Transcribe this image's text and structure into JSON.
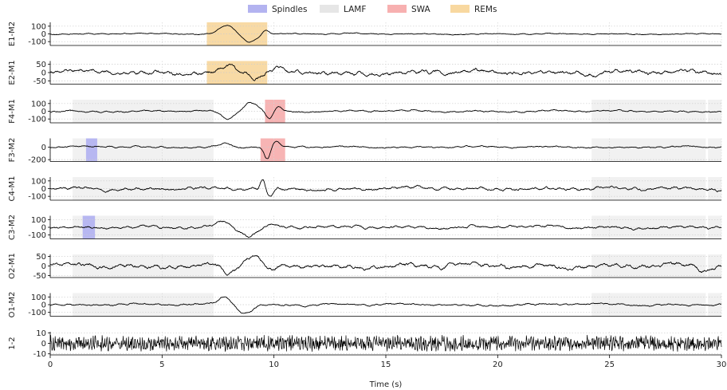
{
  "chart_data": {
    "type": "line",
    "subtype": "multichannel-eeg-traces",
    "xlabel": "Time (s)",
    "xlim": [
      0,
      30
    ],
    "xticks": [
      0,
      5,
      10,
      15,
      20,
      25,
      30
    ],
    "grid": "dotted",
    "legend": {
      "placement": "top-center",
      "entries": [
        {
          "name": "Spindles",
          "color": "#b3b3f0"
        },
        {
          "name": "LAMF",
          "color": "#eeeeee"
        },
        {
          "name": "SWA",
          "color": "#f7b0b0"
        },
        {
          "name": "REMs",
          "color": "#f8d8a0"
        }
      ]
    },
    "channels": [
      {
        "label": "E1-M2",
        "ylim": [
          -150,
          150
        ],
        "yticks": [
          100,
          0,
          -100
        ],
        "events": [
          {
            "type": "REMs",
            "start": 7.0,
            "end": 9.7
          }
        ],
        "waveforms": [
          {
            "type": "bump",
            "center": 7.9,
            "width": 0.45,
            "amp": 110
          },
          {
            "type": "bump",
            "center": 8.9,
            "width": 0.45,
            "amp": -95
          },
          {
            "type": "bump",
            "center": 9.6,
            "width": 0.2,
            "amp": 60
          }
        ],
        "noise": 8
      },
      {
        "label": "E2-M1",
        "ylim": [
          -70,
          70
        ],
        "yticks": [
          50,
          0,
          -50
        ],
        "events": [
          {
            "type": "REMs",
            "start": 7.0,
            "end": 9.7
          }
        ],
        "waveforms": [
          {
            "type": "bump",
            "center": 8.0,
            "width": 0.35,
            "amp": 35
          },
          {
            "type": "bump",
            "center": 9.2,
            "width": 0.3,
            "amp": -40
          },
          {
            "type": "bump",
            "center": 10.2,
            "width": 0.25,
            "amp": 25
          }
        ],
        "noise": 14
      },
      {
        "label": "F4-M1",
        "ylim": [
          -150,
          150
        ],
        "yticks": [
          100,
          0,
          -100
        ],
        "events": [
          {
            "type": "LAMF",
            "start": 1.0,
            "end": 7.3
          },
          {
            "type": "LAMF",
            "start": 24.2,
            "end": 29.3
          },
          {
            "type": "LAMF",
            "start": 29.4,
            "end": 30.0
          },
          {
            "type": "SWA",
            "start": 9.6,
            "end": 10.5
          }
        ],
        "waveforms": [
          {
            "type": "bump",
            "center": 7.9,
            "width": 0.4,
            "amp": -100
          },
          {
            "type": "bump",
            "center": 9.0,
            "width": 0.4,
            "amp": 120
          },
          {
            "type": "bump",
            "center": 9.8,
            "width": 0.2,
            "amp": -100
          },
          {
            "type": "bump",
            "center": 10.2,
            "width": 0.2,
            "amp": 70
          }
        ],
        "noise": 12
      },
      {
        "label": "F3-M2",
        "ylim": [
          -230,
          140
        ],
        "yticks": [
          0,
          -200
        ],
        "events": [
          {
            "type": "LAMF",
            "start": 1.0,
            "end": 7.3
          },
          {
            "type": "LAMF",
            "start": 24.2,
            "end": 29.3
          },
          {
            "type": "LAMF",
            "start": 29.4,
            "end": 30.0
          },
          {
            "type": "Spindles",
            "start": 1.6,
            "end": 2.1
          },
          {
            "type": "SWA",
            "start": 9.4,
            "end": 10.5
          }
        ],
        "waveforms": [
          {
            "type": "bump",
            "center": 7.8,
            "width": 0.4,
            "amp": 60
          },
          {
            "type": "bump",
            "center": 9.7,
            "width": 0.2,
            "amp": -190
          },
          {
            "type": "bump",
            "center": 10.1,
            "width": 0.25,
            "amp": 80
          }
        ],
        "noise": 14
      },
      {
        "label": "C4-M1",
        "ylim": [
          -150,
          150
        ],
        "yticks": [
          100,
          0,
          -100
        ],
        "events": [
          {
            "type": "LAMF",
            "start": 1.0,
            "end": 7.3
          },
          {
            "type": "LAMF",
            "start": 24.2,
            "end": 29.3
          },
          {
            "type": "LAMF",
            "start": 29.4,
            "end": 30.0
          }
        ],
        "waveforms": [
          {
            "type": "bump",
            "center": 9.5,
            "width": 0.15,
            "amp": 120
          },
          {
            "type": "bump",
            "center": 9.8,
            "width": 0.2,
            "amp": -100
          }
        ],
        "noise": 22
      },
      {
        "label": "C3-M2",
        "ylim": [
          -150,
          150
        ],
        "yticks": [
          100,
          0,
          -100
        ],
        "events": [
          {
            "type": "LAMF",
            "start": 1.0,
            "end": 7.3
          },
          {
            "type": "LAMF",
            "start": 24.2,
            "end": 29.3
          },
          {
            "type": "LAMF",
            "start": 29.4,
            "end": 30.0
          },
          {
            "type": "Spindles",
            "start": 1.45,
            "end": 2.0
          }
        ],
        "waveforms": [
          {
            "type": "bump",
            "center": 7.7,
            "width": 0.4,
            "amp": 100
          },
          {
            "type": "bump",
            "center": 8.9,
            "width": 0.45,
            "amp": -110
          },
          {
            "type": "bump",
            "center": 9.9,
            "width": 0.3,
            "amp": 40
          }
        ],
        "noise": 20
      },
      {
        "label": "O2-M1",
        "ylim": [
          -60,
          60
        ],
        "yticks": [
          50,
          0,
          -50
        ],
        "events": [
          {
            "type": "LAMF",
            "start": 1.0,
            "end": 7.3
          },
          {
            "type": "LAMF",
            "start": 24.2,
            "end": 29.3
          },
          {
            "type": "LAMF",
            "start": 29.4,
            "end": 30.0
          }
        ],
        "waveforms": [
          {
            "type": "bump",
            "center": 8.0,
            "width": 0.35,
            "amp": -45
          },
          {
            "type": "bump",
            "center": 9.0,
            "width": 0.45,
            "amp": 50
          },
          {
            "type": "bump",
            "center": 9.9,
            "width": 0.25,
            "amp": -35
          },
          {
            "type": "bump",
            "center": 29.2,
            "width": 0.25,
            "amp": -30
          }
        ],
        "noise": 12
      },
      {
        "label": "O1-M2",
        "ylim": [
          -150,
          150
        ],
        "yticks": [
          100,
          0,
          -100
        ],
        "events": [
          {
            "type": "LAMF",
            "start": 1.0,
            "end": 7.3
          },
          {
            "type": "LAMF",
            "start": 24.2,
            "end": 29.3
          },
          {
            "type": "LAMF",
            "start": 29.4,
            "end": 30.0
          }
        ],
        "waveforms": [
          {
            "type": "bump",
            "center": 7.8,
            "width": 0.4,
            "amp": 100
          },
          {
            "type": "bump",
            "center": 8.7,
            "width": 0.45,
            "amp": -110
          }
        ],
        "noise": 14
      },
      {
        "label": "1-2",
        "ylim": [
          -11,
          11
        ],
        "yticks": [
          10,
          0,
          -10
        ],
        "events": [],
        "waveforms": [],
        "noise": 5
      }
    ]
  }
}
